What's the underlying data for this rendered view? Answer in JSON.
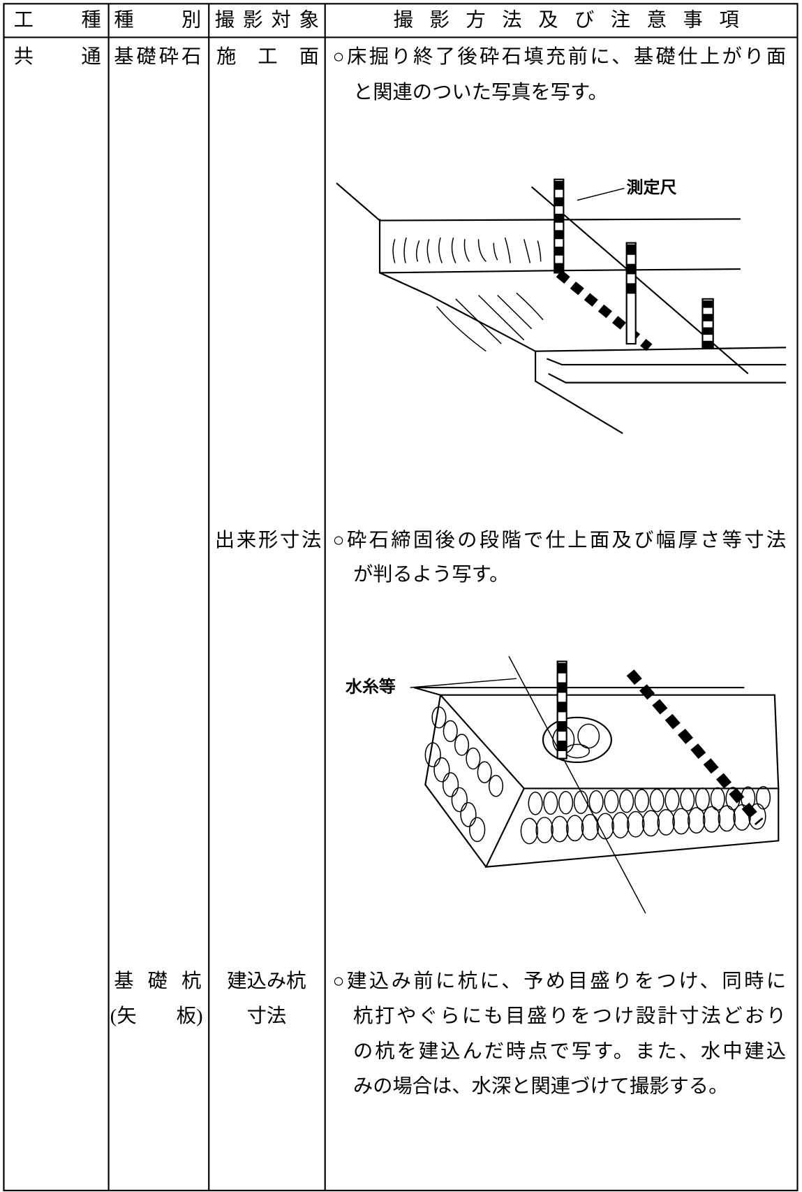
{
  "table": {
    "header": [
      "工　種",
      "種　別",
      "撮影対象",
      "撮影方法及び注意事項"
    ],
    "rows": [
      {
        "kind": "共　通",
        "type": [
          "基礎砕石"
        ],
        "target": [
          "施　工　面"
        ],
        "method": [
          "○床掘り終了後砕石填充前に、基礎仕上がり面",
          "と関連のついた写真を写す。"
        ],
        "figure_label": "測定尺"
      },
      {
        "target": [
          "出来形寸法"
        ],
        "method": [
          "○砕石締固後の段階で仕上面及び幅厚さ等寸法",
          "が判るよう写す。"
        ],
        "figure_label": "水糸等"
      },
      {
        "type": [
          "基 礎 杭",
          "(矢　　板)"
        ],
        "target": [
          "建込み杭",
          "寸法"
        ],
        "method": [
          "○建込み前に杭に、予め目盛りをつけ、同時に",
          "杭打やぐらにも目盛りをつけ設計寸法どおり",
          "の杭を建込んだ時点で写す。また、水中建込",
          "みの場合は、水深と関連づけて撮影する。"
        ]
      }
    ]
  }
}
